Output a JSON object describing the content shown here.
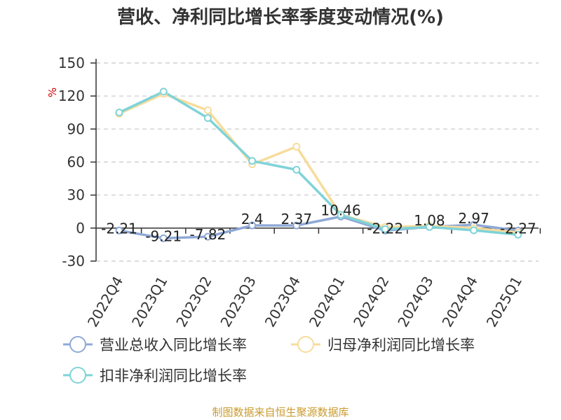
{
  "chart_data": {
    "type": "line",
    "title": "营收、净利同比增长率季度变动情况(%)",
    "ylabel": "%",
    "ylim": [
      -30,
      150
    ],
    "yticks": [
      150,
      120,
      90,
      60,
      30,
      0,
      -30
    ],
    "grid": "horizontal-dashed",
    "legend_position": "bottom",
    "categories": [
      "2022Q4",
      "2023Q1",
      "2023Q2",
      "2023Q3",
      "2023Q4",
      "2024Q1",
      "2024Q2",
      "2024Q3",
      "2024Q4",
      "2025Q1"
    ],
    "series": [
      {
        "name": "营业总收入同比增长率",
        "color": "#8fa9d6",
        "values": [
          -2.21,
          -9.21,
          -7.82,
          2.4,
          2.37,
          10.46,
          -2.22,
          1.08,
          2.97,
          -2.27
        ],
        "labels": [
          "-2.21",
          "-9.21",
          "-7.82",
          "2.4",
          "2.37",
          "10.46",
          "-2.22",
          "1.08",
          "2.97",
          "-2.27"
        ]
      },
      {
        "name": "归母净利润同比增长率",
        "color": "#f7dc9c",
        "values": [
          104,
          122,
          107,
          58,
          74,
          12,
          1,
          2,
          0,
          -4
        ]
      },
      {
        "name": "扣非净利润同比增长率",
        "color": "#7fd3d8",
        "values": [
          105,
          124,
          100,
          61,
          53,
          12,
          -1,
          1,
          -2,
          -6
        ]
      }
    ]
  },
  "source_text": "制图数据来自恒生聚源数据库"
}
